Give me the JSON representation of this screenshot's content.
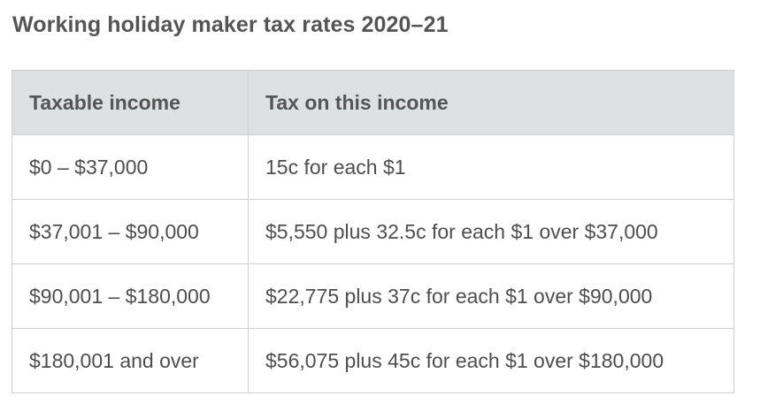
{
  "title": "Working holiday maker tax rates 2020–21",
  "table": {
    "headers": [
      "Taxable income",
      "Tax on this income"
    ],
    "rows": [
      [
        "$0 – $37,000",
        "15c for each $1"
      ],
      [
        "$37,001 – $90,000",
        "$5,550 plus 32.5c for each $1 over $37,000"
      ],
      [
        "$90,001 – $180,000",
        "$22,775 plus 37c for each $1 over $90,000"
      ],
      [
        "$180,001 and over",
        "$56,075 plus 45c for each $1 over $180,000"
      ]
    ]
  }
}
